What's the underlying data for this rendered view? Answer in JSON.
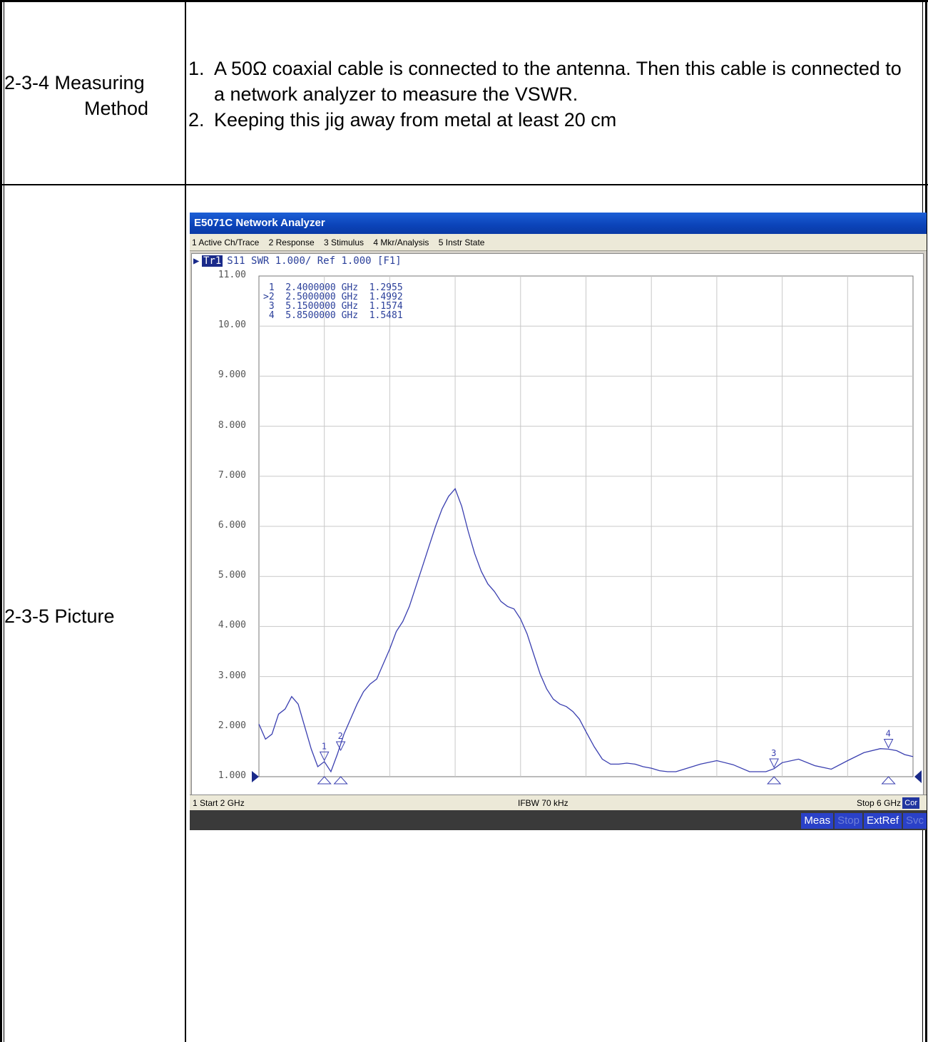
{
  "row1": {
    "label_line1": "2-3-4 Measuring",
    "label_line2": "Method",
    "steps": [
      {
        "num": "1.",
        "text": "A 50Ω coaxial cable is connected to the antenna. Then this cable is connected to a network analyzer to measure the VSWR."
      },
      {
        "num": "2.",
        "text": "Keeping this jig away from metal at least 20 cm"
      }
    ]
  },
  "row2": {
    "label": "2-3-5 Picture"
  },
  "analyzer": {
    "title": "E5071C Network Analyzer",
    "menu": [
      "1 Active Ch/Trace",
      "2 Response",
      "3 Stimulus",
      "4 Mkr/Analysis",
      "5 Instr State"
    ],
    "trace_tag": "Tr1",
    "trace_header": "S11  SWR 1.000/ Ref 1.000 [F1]",
    "status_start": "1  Start 2 GHz",
    "status_ifbw": "IFBW 70 kHz",
    "status_stop": "Stop 6 GHz",
    "status_cor": "Cor",
    "buttons": [
      {
        "label": "Meas",
        "dim": false
      },
      {
        "label": "Stop",
        "dim": true
      },
      {
        "label": "ExtRef",
        "dim": false
      },
      {
        "label": "Svc",
        "dim": true
      }
    ]
  },
  "chart_data": {
    "type": "line",
    "x_unit": "GHz",
    "xlim": [
      2,
      6
    ],
    "ylim": [
      1.0,
      11.0
    ],
    "y_tick_labels": [
      "11.00",
      "10.00",
      "9.000",
      "8.000",
      "7.000",
      "6.000",
      "5.000",
      "4.000",
      "3.000",
      "2.000",
      "1.000"
    ],
    "marker_table": [
      {
        "id": "1",
        "freq": "2.4000000 GHz",
        "value": "1.2955"
      },
      {
        "id": ">2",
        "freq": "2.5000000 GHz",
        "value": "1.4992"
      },
      {
        "id": "3",
        "freq": "5.1500000 GHz",
        "value": "1.1574"
      },
      {
        "id": "4",
        "freq": "5.8500000 GHz",
        "value": "1.5481"
      }
    ],
    "markers": [
      {
        "label": "1",
        "x": 2.4,
        "y": 1.2955
      },
      {
        "label": "2",
        "x": 2.5,
        "y": 1.4992
      },
      {
        "label": "3",
        "x": 5.15,
        "y": 1.1574
      },
      {
        "label": "4",
        "x": 5.85,
        "y": 1.5481
      }
    ],
    "series": [
      {
        "x": [
          2.0,
          2.04,
          2.08,
          2.12,
          2.16,
          2.2,
          2.24,
          2.28,
          2.32,
          2.36,
          2.4,
          2.44,
          2.48,
          2.52,
          2.56,
          2.6,
          2.64,
          2.68,
          2.72,
          2.76,
          2.8,
          2.84,
          2.88,
          2.92,
          2.96,
          3.0,
          3.04,
          3.08,
          3.12,
          3.16,
          3.2,
          3.24,
          3.28,
          3.32,
          3.36,
          3.4,
          3.44,
          3.48,
          3.52,
          3.56,
          3.6,
          3.64,
          3.68,
          3.72,
          3.76,
          3.8,
          3.84,
          3.88,
          3.92,
          3.96,
          4.0,
          4.05,
          4.1,
          4.15,
          4.2,
          4.25,
          4.3,
          4.35,
          4.4,
          4.45,
          4.5,
          4.55,
          4.6,
          4.7,
          4.8,
          4.9,
          5.0,
          5.1,
          5.15,
          5.2,
          5.3,
          5.4,
          5.5,
          5.6,
          5.7,
          5.8,
          5.85,
          5.9,
          5.95,
          6.0
        ],
        "y": [
          2.05,
          1.75,
          1.85,
          2.25,
          2.35,
          2.6,
          2.45,
          2.0,
          1.55,
          1.2,
          1.3,
          1.1,
          1.45,
          1.85,
          2.15,
          2.45,
          2.7,
          2.85,
          2.95,
          3.25,
          3.55,
          3.9,
          4.1,
          4.4,
          4.8,
          5.2,
          5.6,
          6.0,
          6.35,
          6.6,
          6.75,
          6.4,
          5.9,
          5.45,
          5.1,
          4.85,
          4.7,
          4.5,
          4.4,
          4.35,
          4.15,
          3.85,
          3.45,
          3.05,
          2.75,
          2.55,
          2.45,
          2.4,
          2.3,
          2.15,
          1.9,
          1.6,
          1.35,
          1.25,
          1.25,
          1.27,
          1.25,
          1.2,
          1.17,
          1.12,
          1.1,
          1.1,
          1.15,
          1.25,
          1.32,
          1.24,
          1.1,
          1.1,
          1.16,
          1.28,
          1.35,
          1.22,
          1.15,
          1.32,
          1.48,
          1.56,
          1.55,
          1.52,
          1.44,
          1.4
        ]
      }
    ]
  }
}
